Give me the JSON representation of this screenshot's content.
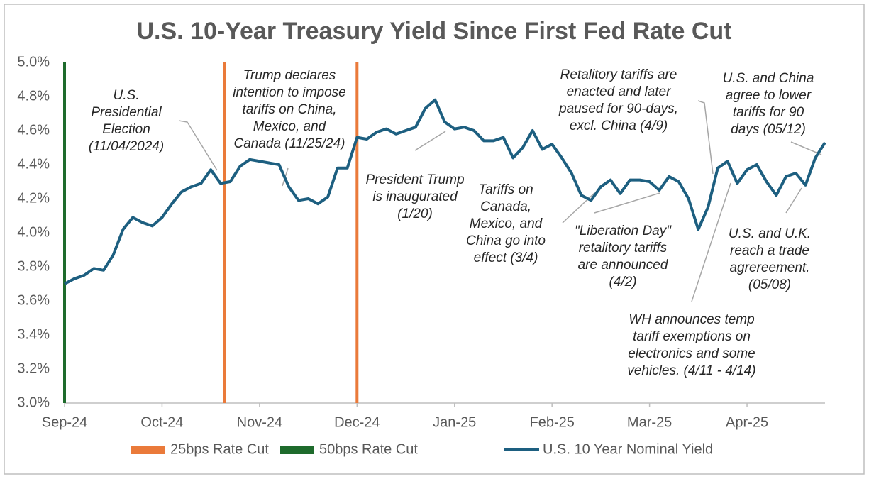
{
  "chart_data": {
    "type": "line",
    "title": "U.S. 10-Year Treasury Yield Since First Fed Rate Cut",
    "categories": [
      "Sep-24",
      null,
      null,
      null,
      null,
      null,
      null,
      null,
      null,
      null,
      "Oct-24",
      null,
      null,
      null,
      null,
      null,
      null,
      null,
      null,
      null,
      "Nov-24",
      null,
      null,
      null,
      null,
      null,
      null,
      null,
      null,
      null,
      "Dec-24",
      null,
      null,
      null,
      null,
      null,
      null,
      null,
      null,
      null,
      "Jan-25",
      null,
      null,
      null,
      null,
      null,
      null,
      null,
      null,
      null,
      "Feb-25",
      null,
      null,
      null,
      null,
      null,
      null,
      null,
      null,
      null,
      "Mar-25",
      null,
      null,
      null,
      null,
      null,
      null,
      null,
      null,
      null,
      "Apr-25",
      null,
      null,
      null,
      null,
      null,
      null,
      null,
      null
    ],
    "series": [
      {
        "name": "U.S. 10 Year Nominal Yield",
        "color": "#1d5f80",
        "values": [
          3.7,
          3.73,
          3.75,
          3.79,
          3.78,
          3.87,
          4.02,
          4.09,
          4.06,
          4.04,
          4.09,
          4.17,
          4.24,
          4.27,
          4.29,
          4.37,
          4.29,
          4.3,
          4.39,
          4.43,
          4.42,
          4.41,
          4.4,
          4.27,
          4.19,
          4.2,
          4.17,
          4.21,
          4.38,
          4.38,
          4.56,
          4.55,
          4.59,
          4.61,
          4.58,
          4.6,
          4.62,
          4.73,
          4.78,
          4.65,
          4.61,
          4.62,
          4.6,
          4.54,
          4.54,
          4.56,
          4.44,
          4.5,
          4.6,
          4.49,
          4.52,
          4.44,
          4.35,
          4.22,
          4.19,
          4.27,
          4.31,
          4.23,
          4.31,
          4.31,
          4.3,
          4.25,
          4.33,
          4.3,
          4.2,
          4.02,
          4.15,
          4.38,
          4.42,
          4.29,
          4.37,
          4.4,
          4.3,
          4.22,
          4.33,
          4.35,
          4.28,
          4.44,
          4.53
        ]
      }
    ],
    "rate_cuts": [
      {
        "name": "25bps Rate Cut",
        "color": "#ea7a3a",
        "x": [
          16.4,
          30
        ]
      },
      {
        "name": "50bps Rate Cut",
        "color": "#1e6b2c",
        "x": [
          0
        ]
      }
    ],
    "xlim": [
      0,
      78
    ],
    "ylim": [
      3.0,
      5.0
    ],
    "yticks": [
      {
        "value": 3.0,
        "label": "3.0%"
      },
      {
        "value": 3.2,
        "label": "3.2%"
      },
      {
        "value": 3.4,
        "label": "3.4%"
      },
      {
        "value": 3.6,
        "label": "3.6%"
      },
      {
        "value": 3.8,
        "label": "3.8%"
      },
      {
        "value": 4.0,
        "label": "4.0%"
      },
      {
        "value": 4.2,
        "label": "4.2%"
      },
      {
        "value": 4.4,
        "label": "4.4%"
      },
      {
        "value": 4.6,
        "label": "4.6%"
      },
      {
        "value": 4.8,
        "label": "4.8%"
      },
      {
        "value": 5.0,
        "label": "5.0%"
      }
    ],
    "annotations": [
      [
        "U.S.",
        "Presidential",
        "Election",
        "(11/04/2024)"
      ],
      [
        "Trump declares",
        "intention to impose",
        "tariffs on China,",
        "Mexico, and",
        "Canada (11/25/24)"
      ],
      [
        "President Trump",
        "is inaugurated",
        "(1/20)"
      ],
      [
        "Tariffs on",
        "Canada,",
        "Mexico, and",
        "China go into",
        "effect (3/4)"
      ],
      [
        "\"Liberation Day\"",
        "retalitory tariffs",
        "are announced",
        "(4/2)"
      ],
      [
        "Retalitory tariffs are",
        "enacted and later",
        "paused for 90-days,",
        "excl. China (4/9)"
      ],
      [
        "U.S. and China",
        "agree to lower",
        "tariffs for 90",
        "days (05/12)"
      ],
      [
        "U.S. and U.K.",
        "reach a trade",
        "agrereement.",
        "(05/08)"
      ],
      [
        "WH announces temp",
        "tariff exemptions on",
        "electronics and some",
        "vehicles. (4/11 - 4/14)"
      ]
    ]
  }
}
